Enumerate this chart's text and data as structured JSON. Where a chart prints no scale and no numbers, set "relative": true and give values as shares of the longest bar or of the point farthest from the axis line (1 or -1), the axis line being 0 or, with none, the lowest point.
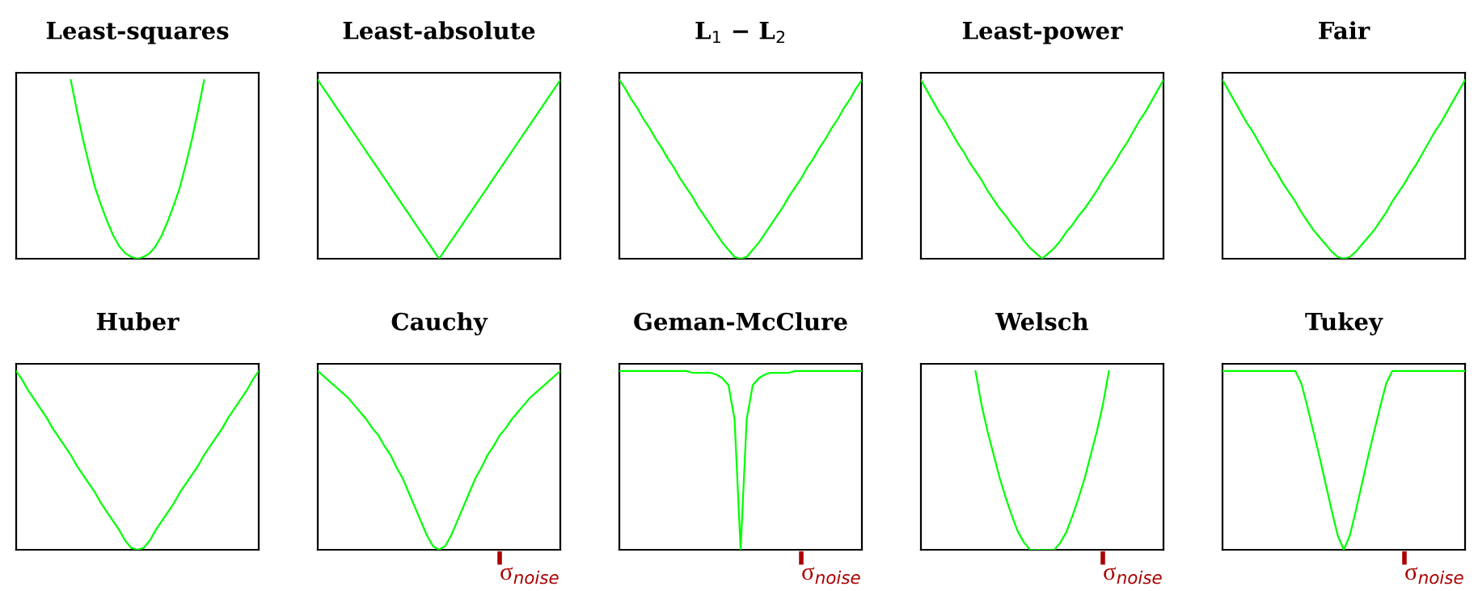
{
  "chart_data": [
    {
      "type": "line",
      "title": "Least-squares",
      "relative": true,
      "categories": [
        null,
        null,
        null,
        null,
        null,
        null,
        null,
        null,
        null,
        null,
        null,
        null,
        null,
        null,
        null,
        null,
        null,
        null,
        null,
        null,
        null,
        null,
        null,
        null,
        null,
        null,
        null,
        null,
        null,
        null,
        null,
        null,
        null,
        null,
        null,
        null,
        null,
        null,
        null,
        null,
        null
      ],
      "series": [
        {
          "color": "#00ff00",
          "values": [
            null,
            null,
            null,
            null,
            null,
            null,
            null,
            null,
            null,
            1.0,
            0.83,
            0.67,
            0.53,
            0.4,
            0.3,
            0.21,
            0.13,
            0.07,
            0.03,
            0.01,
            0,
            0.01,
            0.03,
            0.07,
            0.13,
            0.21,
            0.3,
            0.4,
            0.53,
            0.67,
            0.83,
            1.0,
            null,
            null,
            null,
            null,
            null,
            null,
            null,
            null,
            null
          ]
        }
      ]
    },
    {
      "type": "line",
      "title": "Least-absolute",
      "relative": true,
      "categories": [
        null,
        null,
        null,
        null,
        null,
        null,
        null,
        null,
        null,
        null,
        null,
        null,
        null,
        null,
        null,
        null,
        null,
        null,
        null,
        null,
        null,
        null,
        null,
        null,
        null,
        null,
        null,
        null,
        null,
        null,
        null,
        null,
        null,
        null,
        null,
        null,
        null,
        null,
        null,
        null,
        null
      ],
      "series": [
        {
          "color": "#00ff00",
          "values": [
            1,
            0.95,
            0.9,
            0.85,
            0.8,
            0.75,
            0.7,
            0.65,
            0.6,
            0.55,
            0.5,
            0.45,
            0.4,
            0.35,
            0.3,
            0.25,
            0.2,
            0.15,
            0.1,
            0.05,
            0,
            0.05,
            0.1,
            0.15,
            0.2,
            0.25,
            0.3,
            0.35,
            0.4,
            0.45,
            0.5,
            0.55,
            0.6,
            0.65,
            0.7,
            0.75,
            0.8,
            0.85,
            0.9,
            0.95,
            1
          ]
        }
      ]
    },
    {
      "type": "line",
      "title": "L$_{1}$ − L$_{2}$",
      "relative": true,
      "categories": [
        null,
        null,
        null,
        null,
        null,
        null,
        null,
        null,
        null,
        null,
        null,
        null,
        null,
        null,
        null,
        null,
        null,
        null,
        null,
        null,
        null,
        null,
        null,
        null,
        null,
        null,
        null,
        null,
        null,
        null,
        null,
        null,
        null,
        null,
        null,
        null,
        null,
        null,
        null,
        null,
        null
      ],
      "series": [
        {
          "color": "#00ff00",
          "values": [
            1,
            0.95,
            0.89,
            0.84,
            0.78,
            0.73,
            0.67,
            0.62,
            0.56,
            0.51,
            0.45,
            0.4,
            0.35,
            0.29,
            0.24,
            0.19,
            0.14,
            0.09,
            0.05,
            0.01,
            0,
            0.01,
            0.05,
            0.09,
            0.14,
            0.19,
            0.24,
            0.29,
            0.35,
            0.4,
            0.45,
            0.51,
            0.56,
            0.62,
            0.67,
            0.73,
            0.78,
            0.84,
            0.89,
            0.95,
            1
          ]
        }
      ]
    },
    {
      "type": "line",
      "title": "Least-power",
      "relative": true,
      "categories": [
        null,
        null,
        null,
        null,
        null,
        null,
        null,
        null,
        null,
        null,
        null,
        null,
        null,
        null,
        null,
        null,
        null,
        null,
        null,
        null,
        null,
        null,
        null,
        null,
        null,
        null,
        null,
        null,
        null,
        null,
        null,
        null,
        null,
        null,
        null,
        null,
        null,
        null,
        null,
        null,
        null
      ],
      "series": [
        {
          "color": "#00ff00",
          "values": [
            1,
            0.94,
            0.88,
            0.82,
            0.77,
            0.71,
            0.65,
            0.6,
            0.54,
            0.49,
            0.44,
            0.38,
            0.33,
            0.28,
            0.24,
            0.19,
            0.15,
            0.1,
            0.06,
            0.03,
            0,
            0.03,
            0.06,
            0.1,
            0.15,
            0.19,
            0.24,
            0.28,
            0.33,
            0.38,
            0.44,
            0.49,
            0.54,
            0.6,
            0.65,
            0.71,
            0.77,
            0.82,
            0.88,
            0.94,
            1
          ]
        }
      ]
    },
    {
      "type": "line",
      "title": "Fair",
      "relative": true,
      "categories": [
        null,
        null,
        null,
        null,
        null,
        null,
        null,
        null,
        null,
        null,
        null,
        null,
        null,
        null,
        null,
        null,
        null,
        null,
        null,
        null,
        null,
        null,
        null,
        null,
        null,
        null,
        null,
        null,
        null,
        null,
        null,
        null,
        null,
        null,
        null,
        null,
        null,
        null,
        null,
        null,
        null
      ],
      "series": [
        {
          "color": "#00ff00",
          "values": [
            1,
            0.94,
            0.88,
            0.82,
            0.76,
            0.71,
            0.65,
            0.59,
            0.53,
            0.48,
            0.42,
            0.37,
            0.32,
            0.26,
            0.21,
            0.16,
            0.12,
            0.08,
            0.04,
            0.01,
            0,
            0.01,
            0.04,
            0.08,
            0.12,
            0.16,
            0.21,
            0.26,
            0.32,
            0.37,
            0.42,
            0.48,
            0.53,
            0.59,
            0.65,
            0.71,
            0.76,
            0.82,
            0.88,
            0.94,
            1
          ]
        }
      ]
    },
    {
      "type": "line",
      "title": "Huber",
      "relative": true,
      "categories": [
        null,
        null,
        null,
        null,
        null,
        null,
        null,
        null,
        null,
        null,
        null,
        null,
        null,
        null,
        null,
        null,
        null,
        null,
        null,
        null,
        null,
        null,
        null,
        null,
        null,
        null,
        null,
        null,
        null,
        null,
        null,
        null,
        null,
        null,
        null,
        null,
        null,
        null,
        null,
        null,
        null
      ],
      "series": [
        {
          "color": "#00ff00",
          "values": [
            1,
            0.95,
            0.89,
            0.84,
            0.79,
            0.74,
            0.68,
            0.63,
            0.58,
            0.53,
            0.47,
            0.42,
            0.37,
            0.32,
            0.26,
            0.21,
            0.16,
            0.11,
            0.05,
            0.01,
            0,
            0.01,
            0.05,
            0.11,
            0.16,
            0.21,
            0.26,
            0.32,
            0.37,
            0.42,
            0.47,
            0.53,
            0.58,
            0.63,
            0.68,
            0.74,
            0.79,
            0.84,
            0.89,
            0.95,
            1
          ]
        }
      ]
    },
    {
      "type": "line",
      "title": "Cauchy",
      "relative": true,
      "annotations": [
        "σ$_{noise}$"
      ],
      "categories": [
        null,
        null,
        null,
        null,
        null,
        null,
        null,
        null,
        null,
        null,
        null,
        null,
        null,
        null,
        null,
        null,
        null,
        null,
        null,
        null,
        null,
        null,
        null,
        null,
        null,
        null,
        null,
        null,
        null,
        null,
        null,
        null,
        null,
        null,
        null,
        null,
        null,
        null,
        null,
        null,
        null
      ],
      "series": [
        {
          "color": "#00ff00",
          "values": [
            1,
            0.97,
            0.94,
            0.91,
            0.88,
            0.85,
            0.81,
            0.77,
            0.73,
            0.68,
            0.64,
            0.58,
            0.53,
            0.46,
            0.4,
            0.32,
            0.24,
            0.16,
            0.08,
            0.02,
            0,
            0.02,
            0.08,
            0.16,
            0.24,
            0.32,
            0.4,
            0.46,
            0.53,
            0.58,
            0.64,
            0.68,
            0.73,
            0.77,
            0.81,
            0.85,
            0.88,
            0.91,
            0.94,
            0.97,
            1
          ]
        }
      ]
    },
    {
      "type": "line",
      "title": "Geman-McClure",
      "relative": true,
      "annotations": [
        "σ$_{noise}$"
      ],
      "categories": [
        null,
        null,
        null,
        null,
        null,
        null,
        null,
        null,
        null,
        null,
        null,
        null,
        null,
        null,
        null,
        null,
        null,
        null,
        null,
        null,
        null,
        null,
        null,
        null,
        null,
        null,
        null,
        null,
        null,
        null,
        null,
        null,
        null,
        null,
        null,
        null,
        null,
        null,
        null,
        null,
        null
      ],
      "series": [
        {
          "color": "#00ff00",
          "values": [
            1,
            1,
            1,
            1,
            1,
            1,
            1,
            1,
            1,
            1,
            1,
            1,
            0.99,
            0.99,
            0.99,
            0.99,
            0.98,
            0.96,
            0.92,
            0.73,
            0,
            0.73,
            0.92,
            0.96,
            0.98,
            0.99,
            0.99,
            0.99,
            0.99,
            1,
            1,
            1,
            1,
            1,
            1,
            1,
            1,
            1,
            1,
            1,
            1
          ]
        }
      ]
    },
    {
      "type": "line",
      "title": "Welsch",
      "relative": true,
      "annotations": [
        "σ$_{noise}$"
      ],
      "categories": [
        null,
        null,
        null,
        null,
        null,
        null,
        null,
        null,
        null,
        null,
        null,
        null,
        null,
        null,
        null,
        null,
        null,
        null,
        null,
        null,
        null,
        null,
        null,
        null,
        null,
        null,
        null,
        null,
        null,
        null,
        null,
        null,
        null,
        null,
        null,
        null,
        null,
        null,
        null,
        null,
        null
      ],
      "series": [
        {
          "color": "#00ff00",
          "values": [
            null,
            null,
            null,
            null,
            null,
            null,
            null,
            null,
            null,
            1,
            0.81,
            0.66,
            0.53,
            0.4,
            0.29,
            0.19,
            0.1,
            0.04,
            0,
            0,
            0,
            0,
            0,
            0.04,
            0.1,
            0.19,
            0.29,
            0.4,
            0.53,
            0.66,
            0.81,
            1,
            null,
            null,
            null,
            null,
            null,
            null,
            null,
            null,
            null
          ]
        }
      ]
    },
    {
      "type": "line",
      "title": "Tukey",
      "relative": true,
      "annotations": [
        "σ$_{noise}$"
      ],
      "categories": [
        null,
        null,
        null,
        null,
        null,
        null,
        null,
        null,
        null,
        null,
        null,
        null,
        null,
        null,
        null,
        null,
        null,
        null,
        null,
        null,
        null,
        null,
        null,
        null,
        null,
        null,
        null,
        null,
        null,
        null,
        null,
        null,
        null,
        null,
        null,
        null,
        null,
        null,
        null,
        null,
        null
      ],
      "series": [
        {
          "color": "#00ff00",
          "values": [
            1,
            1,
            1,
            1,
            1,
            1,
            1,
            1,
            1,
            1,
            1,
            1,
            1,
            0.93,
            0.8,
            0.66,
            0.52,
            0.37,
            0.22,
            0.08,
            0,
            0.08,
            0.22,
            0.37,
            0.52,
            0.66,
            0.8,
            0.93,
            1,
            1,
            1,
            1,
            1,
            1,
            1,
            1,
            1,
            1,
            1,
            1,
            1
          ]
        }
      ]
    }
  ]
}
